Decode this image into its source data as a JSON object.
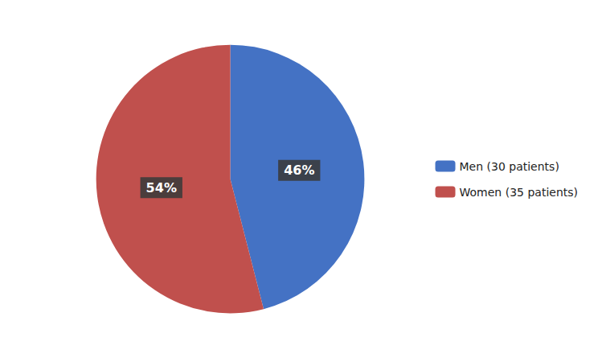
{
  "chart_data": {
    "type": "pie",
    "categories": [
      "Men (30 patients)",
      "Women (35 patients)"
    ],
    "values": [
      46,
      54
    ],
    "value_labels": [
      "46%",
      "54%"
    ],
    "colors": [
      "#4472C4",
      "#C0504D"
    ],
    "data_labels": true,
    "legend": "right"
  }
}
